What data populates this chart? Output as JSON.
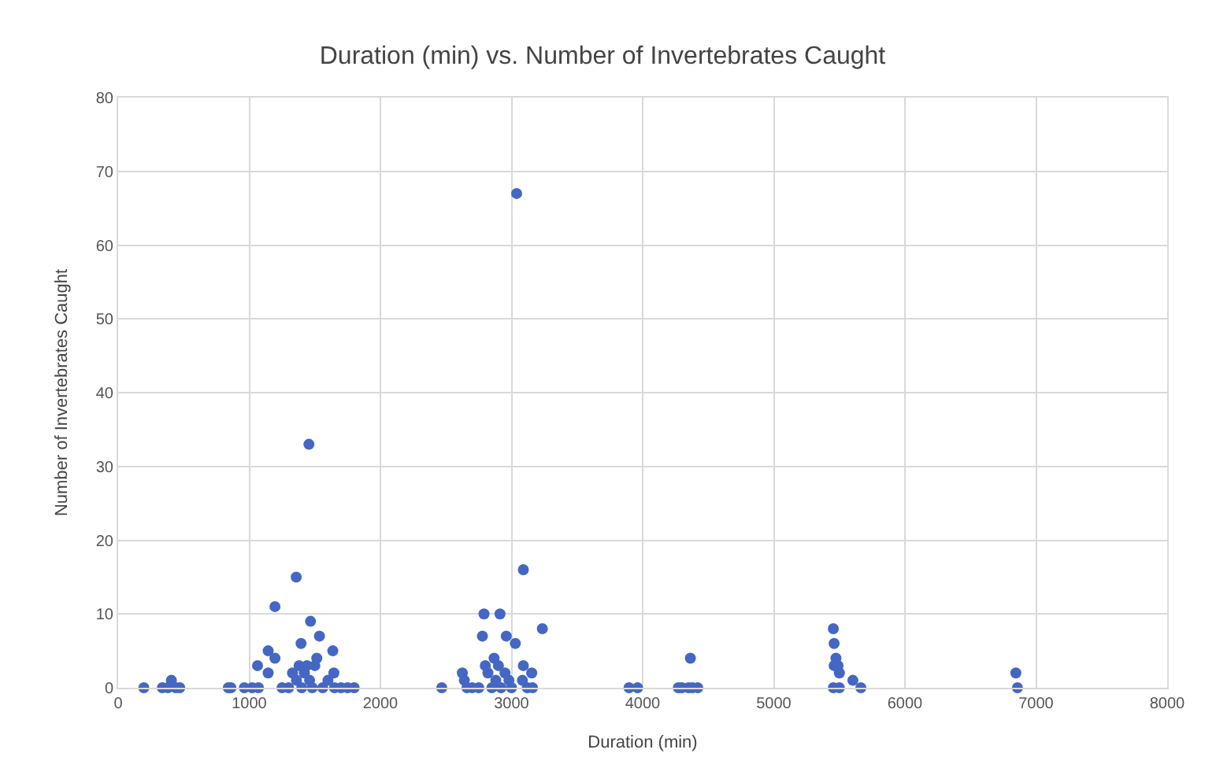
{
  "chart_data": {
    "type": "scatter",
    "title": "Duration (min) vs. Number of Invertebrates Caught",
    "xlabel": "Duration (min)",
    "ylabel": "Number of Invertebrates Caught",
    "xlim": [
      0,
      8000
    ],
    "xticks": [
      0,
      1000,
      2000,
      3000,
      4000,
      5000,
      6000,
      7000,
      8000
    ],
    "ylim": [
      0,
      80
    ],
    "yticks": [
      0,
      10,
      20,
      30,
      40,
      50,
      60,
      70,
      80
    ],
    "grid": true,
    "marker": "circle",
    "series": [
      {
        "color": "#4467c4",
        "x": [
          196,
          337,
          380,
          406,
          440,
          470,
          840,
          860,
          962,
          1022,
          1070,
          1063,
          1144,
          1144,
          1196,
          1196,
          1250,
          1300,
          1330,
          1358,
          1360,
          1380,
          1395,
          1400,
          1420,
          1440,
          1455,
          1460,
          1467,
          1480,
          1500,
          1515,
          1535,
          1560,
          1600,
          1637,
          1645,
          1650,
          1700,
          1750,
          1800,
          2468,
          2625,
          2640,
          2660,
          2700,
          2750,
          2778,
          2790,
          2800,
          2820,
          2850,
          2867,
          2880,
          2900,
          2912,
          2920,
          2950,
          2960,
          2980,
          3000,
          3029,
          3039,
          3083,
          3090,
          3090,
          3120,
          3154,
          3160,
          3235,
          3896,
          3961,
          4272,
          4300,
          4350,
          4364,
          4380,
          4420,
          5454,
          5454,
          5460,
          5460,
          5474,
          5490,
          5500,
          5500,
          5603,
          5664,
          6846,
          6858
        ],
        "values": [
          0,
          0,
          0,
          1,
          0,
          0,
          0,
          0,
          0,
          0,
          0,
          3,
          5,
          2,
          11,
          4,
          0,
          0,
          2,
          15,
          1,
          3,
          6,
          0,
          2,
          3,
          33,
          1,
          9,
          0,
          3,
          4,
          7,
          0,
          1,
          5,
          2,
          0,
          0,
          0,
          0,
          0,
          2,
          1,
          0,
          0,
          0,
          7,
          10,
          3,
          2,
          0,
          4,
          1,
          3,
          10,
          0,
          2,
          7,
          1,
          0,
          6,
          67,
          1,
          3,
          16,
          0,
          2,
          0,
          8,
          0,
          0,
          0,
          0,
          0,
          4,
          0,
          0,
          8,
          0,
          6,
          3,
          4,
          3,
          2,
          0,
          1,
          0,
          2,
          0
        ]
      }
    ]
  }
}
